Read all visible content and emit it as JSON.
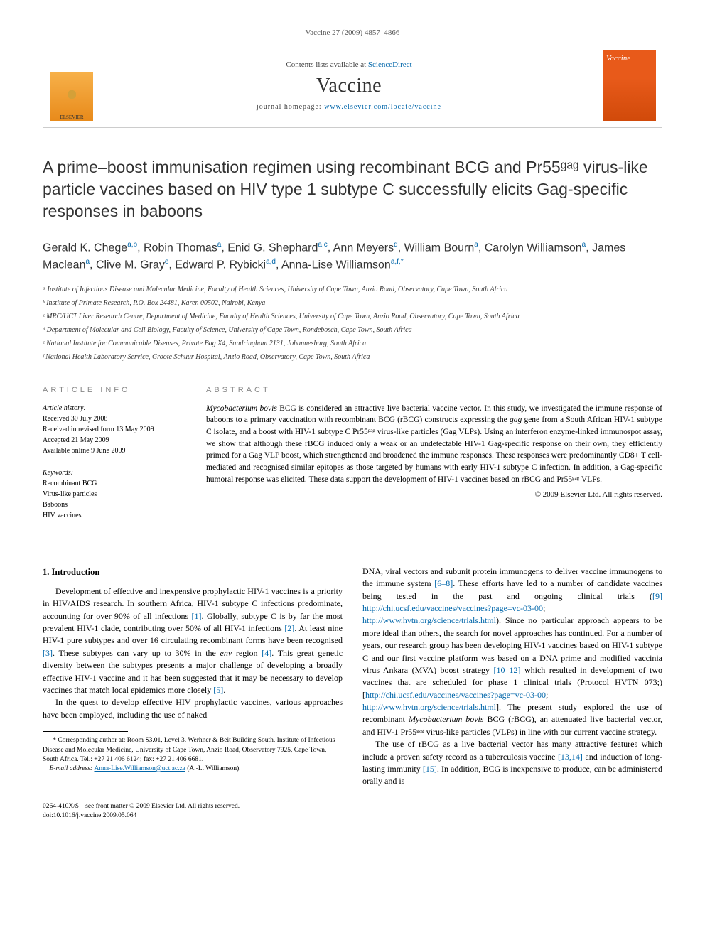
{
  "header": {
    "citation": "Vaccine 27 (2009) 4857–4866",
    "contents_prefix": "Contents lists available at ",
    "contents_link": "ScienceDirect",
    "journal": "Vaccine",
    "homepage_prefix": "journal homepage: ",
    "homepage_url": "www.elsevier.com/locate/vaccine",
    "publisher_logo": "ELSEVIER",
    "cover_label": "Vaccine"
  },
  "title": "A prime–boost immunisation regimen using recombinant BCG and Pr55ᵍᵃᵍ virus-like particle vaccines based on HIV type 1 subtype C successfully elicits Gag-specific responses in baboons",
  "authors_html": "Gerald K. Chege<sup>a,b</sup>, Robin Thomas<sup>a</sup>, Enid G. Shephard<sup>a,c</sup>, Ann Meyers<sup>d</sup>, William Bourn<sup>a</sup>, Carolyn Williamson<sup>a</sup>, James Maclean<sup>a</sup>, Clive M. Gray<sup>e</sup>, Edward P. Rybicki<sup>a,d</sup>, Anna-Lise Williamson<sup>a,f,*</sup>",
  "affiliations": [
    "ᵃ Institute of Infectious Disease and Molecular Medicine, Faculty of Health Sciences, University of Cape Town, Anzio Road, Observatory, Cape Town, South Africa",
    "ᵇ Institute of Primate Research, P.O. Box 24481, Karen 00502, Nairobi, Kenya",
    "ᶜ MRC/UCT Liver Research Centre, Department of Medicine, Faculty of Health Sciences, University of Cape Town, Anzio Road, Observatory, Cape Town, South Africa",
    "ᵈ Department of Molecular and Cell Biology, Faculty of Science, University of Cape Town, Rondebosch, Cape Town, South Africa",
    "ᵉ National Institute for Communicable Diseases, Private Bag X4, Sandringham 2131, Johannesburg, South Africa",
    "ᶠ National Health Laboratory Service, Groote Schuur Hospital, Anzio Road, Observatory, Cape Town, South Africa"
  ],
  "info": {
    "header": "ARTICLE INFO",
    "history_label": "Article history:",
    "history": [
      "Received 30 July 2008",
      "Received in revised form 13 May 2009",
      "Accepted 21 May 2009",
      "Available online 9 June 2009"
    ],
    "keywords_label": "Keywords:",
    "keywords": [
      "Recombinant BCG",
      "Virus-like particles",
      "Baboons",
      "HIV vaccines"
    ]
  },
  "abstract": {
    "header": "ABSTRACT",
    "text": "Mycobacterium bovis BCG is considered an attractive live bacterial vaccine vector. In this study, we investigated the immune response of baboons to a primary vaccination with recombinant BCG (rBCG) constructs expressing the gag gene from a South African HIV-1 subtype C isolate, and a boost with HIV-1 subtype C Pr55ᵍᵃᵍ virus-like particles (Gag VLPs). Using an interferon enzyme-linked immunospot assay, we show that although these rBCG induced only a weak or an undetectable HIV-1 Gag-specific response on their own, they efficiently primed for a Gag VLP boost, which strengthened and broadened the immune responses. These responses were predominantly CD8+ T cell-mediated and recognised similar epitopes as those targeted by humans with early HIV-1 subtype C infection. In addition, a Gag-specific humoral response was elicited. These data support the development of HIV-1 vaccines based on rBCG and Pr55ᵍᵃᵍ VLPs.",
    "copyright": "© 2009 Elsevier Ltd. All rights reserved."
  },
  "body": {
    "section_number": "1.",
    "section_title": "Introduction",
    "col1_p1": "Development of effective and inexpensive prophylactic HIV-1 vaccines is a priority in HIV/AIDS research. In southern Africa, HIV-1 subtype C infections predominate, accounting for over 90% of all infections [1]. Globally, subtype C is by far the most prevalent HIV-1 clade, contributing over 50% of all HIV-1 infections [2]. At least nine HIV-1 pure subtypes and over 16 circulating recombinant forms have been recognised [3]. These subtypes can vary up to 30% in the env region [4]. This great genetic diversity between the subtypes presents a major challenge of developing a broadly effective HIV-1 vaccine and it has been suggested that it may be necessary to develop vaccines that match local epidemics more closely [5].",
    "col1_p2": "In the quest to develop effective HIV prophylactic vaccines, various approaches have been employed, including the use of naked",
    "col2_p1": "DNA, viral vectors and subunit protein immunogens to deliver vaccine immunogens to the immune system [6–8]. These efforts have led to a number of candidate vaccines being tested in the past and ongoing clinical trials ([9] http://chi.ucsf.edu/vaccines/vaccines?page=vc-03-00; http://www.hvtn.org/science/trials.html). Since no particular approach appears to be more ideal than others, the search for novel approaches has continued. For a number of years, our research group has been developing HIV-1 vaccines based on HIV-1 subtype C and our first vaccine platform was based on a DNA prime and modified vaccinia virus Ankara (MVA) boost strategy [10–12] which resulted in development of two vaccines that are scheduled for phase 1 clinical trials (Protocol HVTN 073;) [http://chi.ucsf.edu/vaccines/vaccines?page=vc-03-00; http://www.hvtn.org/science/trials.html]. The present study explored the use of recombinant Mycobacterium bovis BCG (rBCG), an attenuated live bacterial vector, and HIV-1 Pr55ᵍᵃᵍ virus-like particles (VLPs) in line with our current vaccine strategy.",
    "col2_p2": "The use of rBCG as a live bacterial vector has many attractive features which include a proven safety record as a tuberculosis vaccine [13,14] and induction of long-lasting immunity [15]. In addition, BCG is inexpensive to produce, can be administered orally and is"
  },
  "footnote": {
    "corresponding": "* Corresponding author at: Room S3.01, Level 3, Werhner & Beit Building South, Institute of Infectious Disease and Molecular Medicine, University of Cape Town, Anzio Road, Observatory 7925, Cape Town, South Africa. Tel.: +27 21 406 6124; fax: +27 21 406 6681.",
    "email_label": "E-mail address: ",
    "email": "Anna-Lise.Williamson@uct.ac.za",
    "email_suffix": " (A.-L. Williamson)."
  },
  "footer": {
    "line1": "0264-410X/$ – see front matter © 2009 Elsevier Ltd. All rights reserved.",
    "line2": "doi:10.1016/j.vaccine.2009.05.064"
  },
  "colors": {
    "link": "#0066aa",
    "elsevier_orange": "#e88a1a",
    "cover_orange": "#e85a1a"
  }
}
